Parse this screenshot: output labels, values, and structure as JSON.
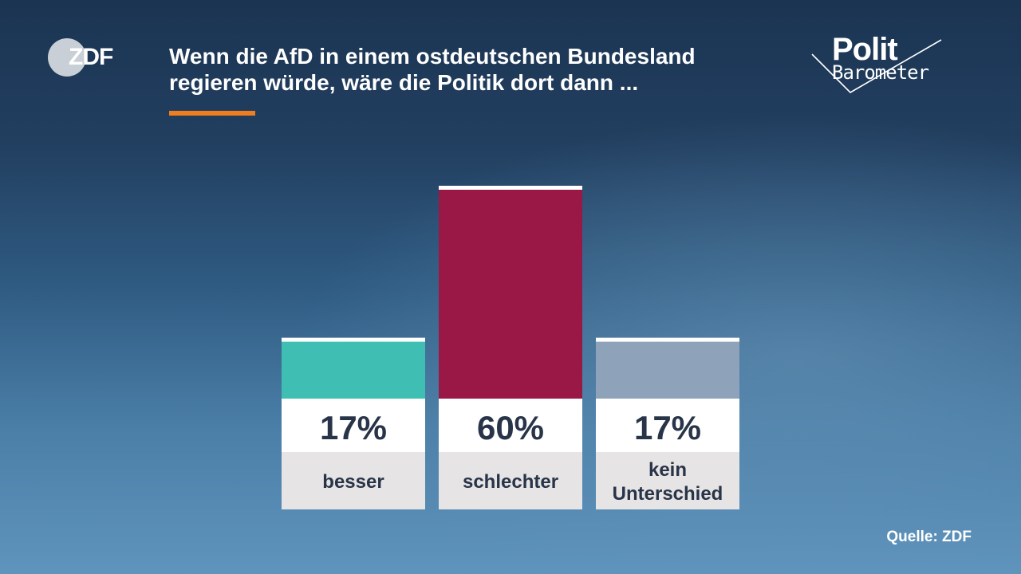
{
  "header": {
    "broadcaster_logo": "ZDF",
    "title": "Wenn die AfD in einem ostdeutschen Bundesland regieren würde, wäre die Politik dort dann ...",
    "series_logo_line1": "Polit",
    "series_logo_line2": "Barometer"
  },
  "chart_data": {
    "type": "bar",
    "categories": [
      "besser",
      "schlechter",
      "kein Unterschied"
    ],
    "values": [
      17,
      60,
      17
    ],
    "value_labels": [
      "17%",
      "60%",
      "17%"
    ],
    "unit": "%",
    "colors": [
      "#3fbfb4",
      "#9a1846",
      "#8ea3ba"
    ],
    "xlabel": "",
    "ylabel": "",
    "ylim": [
      0,
      60
    ],
    "grid": false,
    "legend": "none"
  },
  "footer": {
    "source": "Quelle: ZDF"
  },
  "theme": {
    "accent": "#f07d1e",
    "label_panel": "#e6e4e4",
    "value_panel": "#ffffff",
    "text_dark": "#283448"
  }
}
